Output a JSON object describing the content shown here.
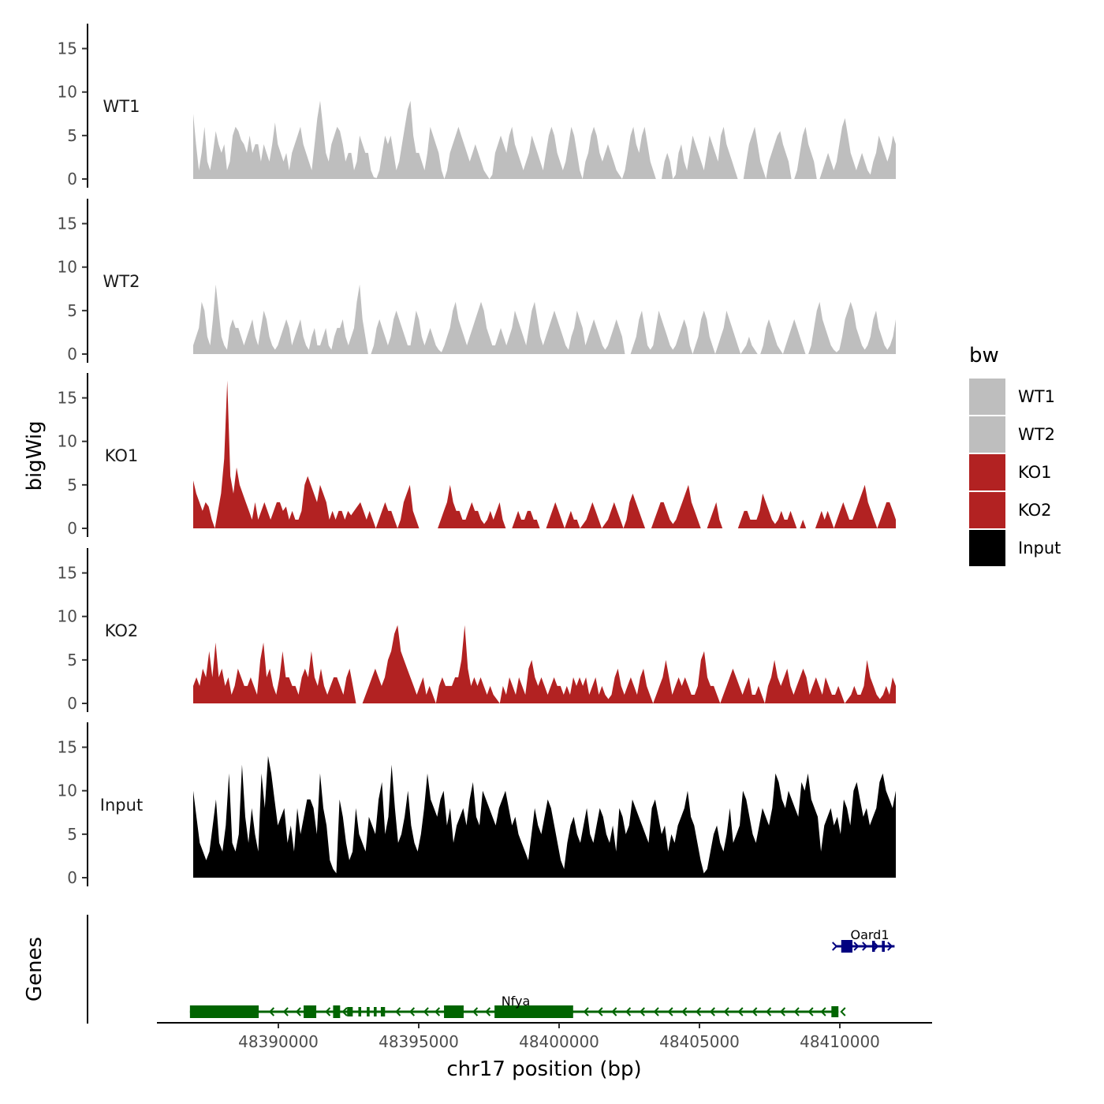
{
  "chart_data": {
    "type": "area",
    "ylabel": "bigWig",
    "xlabel": "chr17 position (bp)",
    "genes_axis_label": "Genes",
    "region": {
      "start": 48386800,
      "end": 48412000
    },
    "ylim": [
      0,
      17.5
    ],
    "y_ticks": [
      0,
      5,
      10,
      15
    ],
    "x_ticks": [
      48390000,
      48395000,
      48400000,
      48405000,
      48410000
    ],
    "x_tick_labels": [
      "48390000",
      "48395000",
      "48400000",
      "48405000",
      "48410000"
    ],
    "colors": {
      "WT1": "#bebebe",
      "WT2": "#bebebe",
      "KO1": "#b22222",
      "KO2": "#b22222",
      "Input": "#000000"
    },
    "legend": {
      "title": "bw",
      "position": "right",
      "entries": [
        "WT1",
        "WT2",
        "KO1",
        "KO2",
        "Input"
      ]
    },
    "tracks": [
      {
        "name": "WT1",
        "values": [
          7.5,
          4,
          1,
          3,
          6,
          2,
          1,
          3,
          5.5,
          4,
          3,
          4,
          1,
          2,
          5,
          6,
          5.5,
          4.5,
          4,
          3,
          5,
          3,
          4,
          4,
          2,
          4,
          3,
          2,
          4,
          6.5,
          4,
          3,
          2,
          3,
          1,
          3,
          4,
          5,
          6,
          4,
          3,
          2,
          1,
          4,
          7,
          9,
          6,
          3,
          2,
          4,
          5,
          6,
          5.5,
          4,
          2,
          3,
          3,
          1,
          2,
          5,
          4,
          3,
          3,
          1,
          0.2,
          0.1,
          1,
          3,
          5,
          4,
          5,
          3,
          1,
          2,
          4,
          6,
          8,
          9,
          5,
          3,
          3,
          2,
          1,
          3,
          6,
          5,
          4,
          3,
          1,
          0,
          1,
          3,
          4,
          5,
          6,
          5,
          4,
          3,
          2,
          3,
          4,
          3,
          2,
          1,
          0.5,
          0,
          0.5,
          3,
          4,
          5,
          4,
          3,
          5,
          6,
          4,
          3,
          2,
          1,
          2,
          3,
          5,
          4,
          3,
          2,
          1,
          3,
          5,
          6,
          5,
          3,
          2,
          1,
          2,
          4,
          6,
          5,
          3,
          1,
          0,
          2,
          3,
          5,
          6,
          5,
          3,
          2,
          3,
          4,
          3,
          2,
          1,
          0.5,
          0,
          1,
          3,
          5,
          6,
          4,
          3,
          5,
          6,
          4,
          2,
          1,
          0,
          0,
          0,
          2,
          3,
          2,
          0,
          0.5,
          3,
          4,
          2,
          1,
          3,
          5,
          4,
          3,
          2,
          1,
          3,
          5,
          4,
          3,
          2,
          5,
          6,
          4,
          3,
          2,
          1,
          0,
          0,
          0,
          2,
          4,
          5,
          6,
          4,
          2,
          1,
          0,
          2,
          3,
          4,
          5,
          5.5,
          4,
          3,
          2,
          0,
          0,
          1,
          3,
          5,
          6,
          4,
          3,
          2,
          0,
          0,
          1,
          2,
          3,
          2,
          1,
          2,
          4,
          6,
          7,
          5,
          3,
          2,
          1,
          2,
          3,
          2,
          1,
          0.5,
          2,
          3,
          5,
          4,
          3,
          2,
          3,
          5,
          4
        ]
      },
      {
        "name": "WT2",
        "values": [
          1,
          2,
          3,
          6,
          5,
          2,
          1,
          4,
          8,
          5,
          2,
          1,
          0.5,
          3,
          4,
          3,
          3,
          2,
          1,
          2,
          3,
          4,
          2,
          1,
          3,
          5,
          4,
          2,
          1,
          0.5,
          1,
          2,
          3,
          4,
          3,
          1,
          2,
          3,
          4,
          2,
          1,
          0.5,
          2,
          3,
          1,
          1,
          2,
          3,
          1,
          0.5,
          2,
          3,
          3,
          4,
          2,
          1,
          2,
          3,
          6,
          8,
          4,
          2,
          0,
          0,
          1,
          3,
          4,
          3,
          2,
          1,
          2,
          4,
          5,
          4,
          3,
          2,
          1,
          1,
          3,
          5,
          4,
          2,
          1,
          2,
          3,
          2,
          1,
          0.5,
          0.2,
          1,
          2,
          3,
          5,
          6,
          4,
          3,
          2,
          1,
          2,
          3,
          4,
          5,
          6,
          5,
          3,
          2,
          1,
          1,
          2,
          3,
          2,
          1,
          2,
          3,
          5,
          4,
          3,
          2,
          1,
          3,
          5,
          6,
          4,
          2,
          1,
          2,
          3,
          4,
          5,
          4,
          3,
          2,
          1,
          0.5,
          2,
          3,
          5,
          4,
          3,
          1,
          2,
          3,
          4,
          3,
          2,
          1,
          0.5,
          1,
          2,
          3,
          4,
          3,
          2,
          0,
          0,
          0,
          1,
          2,
          4,
          5,
          3,
          1,
          0.5,
          1,
          3,
          5,
          4,
          3,
          2,
          1,
          0.5,
          1,
          2,
          3,
          4,
          3,
          1,
          0,
          1,
          2,
          4,
          5,
          4,
          2,
          1,
          0,
          1,
          2,
          3,
          5,
          4,
          3,
          2,
          1,
          0,
          0.5,
          1,
          2,
          1,
          0.5,
          0,
          0,
          1,
          3,
          4,
          3,
          2,
          1,
          0.5,
          0,
          1,
          2,
          3,
          4,
          3,
          2,
          1,
          0,
          0,
          1,
          3,
          5,
          6,
          4,
          3,
          2,
          1,
          0.5,
          0.2,
          0.5,
          2,
          4,
          5,
          6,
          5,
          3,
          2,
          1,
          0.5,
          1,
          2,
          4,
          5,
          3,
          2,
          1,
          0.5,
          1,
          2,
          4
        ]
      },
      {
        "name": "KO1",
        "values": [
          5.5,
          4,
          3,
          2,
          3,
          2.5,
          1,
          0,
          2,
          4,
          8,
          17,
          6,
          4,
          7,
          5,
          4,
          3,
          2,
          1,
          3,
          1,
          2,
          3,
          2,
          1,
          2,
          3,
          3,
          2,
          2.5,
          1,
          2,
          1,
          1,
          2,
          5,
          6,
          5,
          4,
          3,
          5,
          4,
          3,
          1,
          2,
          1,
          2,
          2,
          1,
          2,
          1.5,
          2,
          2.5,
          3,
          2,
          1,
          2,
          1,
          0,
          1,
          2,
          3,
          2,
          2,
          1,
          0,
          1,
          3,
          4,
          5,
          2,
          1,
          0,
          0,
          0,
          0,
          0,
          0,
          0,
          1,
          2,
          3,
          5,
          3,
          2,
          2,
          1,
          1,
          2,
          3,
          2,
          2,
          1,
          0.5,
          1,
          2,
          1,
          2,
          3,
          1,
          0,
          0,
          0,
          1,
          2,
          1,
          1,
          2,
          2,
          1,
          1,
          0,
          0,
          0,
          1,
          2,
          3,
          2,
          1,
          0,
          1,
          2,
          1,
          1,
          0,
          0.5,
          1,
          2,
          3,
          2,
          1,
          0,
          0.5,
          1,
          2,
          3,
          2,
          1,
          0,
          1,
          3,
          4,
          3,
          2,
          1,
          0,
          0,
          0,
          1,
          2,
          3,
          3,
          2,
          1,
          0.5,
          1,
          2,
          3,
          4,
          5,
          3,
          2,
          1,
          0,
          0,
          0,
          1,
          2,
          3,
          1,
          0,
          0,
          0,
          0,
          0,
          0,
          1,
          2,
          2,
          1,
          1,
          1,
          2,
          4,
          3,
          2,
          1,
          0.5,
          1,
          2,
          1,
          1,
          2,
          1,
          0,
          0,
          1,
          0,
          0,
          0,
          0,
          1,
          2,
          1,
          2,
          1,
          0,
          1,
          2,
          3,
          2,
          1,
          1,
          2,
          3,
          4,
          5,
          3,
          2,
          1,
          0,
          1,
          2,
          3,
          3,
          2,
          1
        ]
      },
      {
        "name": "KO2",
        "values": [
          2,
          3,
          2,
          4,
          3,
          6,
          3,
          7,
          3,
          4,
          2,
          3,
          1,
          2,
          4,
          3,
          2,
          2,
          3,
          2,
          1,
          5,
          7,
          3,
          4,
          2,
          1,
          3,
          6,
          3,
          3,
          2,
          2,
          1,
          3,
          4,
          3,
          6,
          3,
          2,
          4,
          2,
          1,
          2,
          3,
          3,
          2,
          1,
          3,
          4,
          2,
          0,
          0,
          0,
          1,
          2,
          3,
          4,
          3,
          2,
          3,
          5,
          6,
          8,
          9,
          6,
          5,
          4,
          3,
          2,
          1,
          2,
          3,
          1,
          2,
          1,
          0,
          2,
          3,
          2,
          2,
          2,
          3,
          3,
          5,
          9,
          4,
          2,
          3,
          2,
          3,
          2,
          1,
          2,
          1,
          0.5,
          0,
          2,
          1,
          3,
          2,
          1,
          3,
          2,
          1,
          4,
          5,
          3,
          2,
          3,
          2,
          1,
          2,
          3,
          2,
          2,
          1,
          2,
          1,
          3,
          2,
          3,
          2,
          3,
          1,
          2,
          3,
          1,
          2,
          1,
          0.5,
          1,
          3,
          4,
          2,
          1,
          2,
          3,
          2,
          1,
          3,
          4,
          2,
          1,
          0,
          1,
          2,
          3,
          5,
          3,
          1,
          2,
          3,
          2,
          3,
          2,
          1,
          1,
          2,
          5,
          6,
          3,
          2,
          2,
          1,
          0,
          1,
          2,
          3,
          4,
          3,
          2,
          1,
          2,
          3,
          1,
          1,
          2,
          1,
          0,
          2,
          3,
          5,
          3,
          2,
          3,
          4,
          2,
          1,
          2,
          3,
          4,
          3,
          1,
          2,
          3,
          2,
          1,
          3,
          2,
          1,
          1,
          2,
          1,
          0,
          0.5,
          1,
          2,
          1,
          1,
          2,
          5,
          3,
          2,
          1,
          0.5,
          1,
          2,
          1,
          3,
          2
        ]
      },
      {
        "name": "Input",
        "values": [
          10,
          7,
          4,
          3,
          2,
          3,
          6,
          9,
          4,
          3,
          6,
          12,
          4,
          3,
          5,
          13,
          7,
          4,
          8,
          5,
          3,
          12,
          8,
          14,
          12,
          9,
          6,
          7,
          8,
          4,
          6,
          3,
          8,
          5,
          7,
          9,
          9,
          8,
          5,
          12,
          8,
          6,
          2,
          1,
          0.5,
          9,
          7,
          4,
          2,
          3,
          8,
          5,
          4,
          3,
          7,
          6,
          5,
          9,
          11,
          5,
          7,
          13,
          8,
          4,
          5,
          7,
          10,
          6,
          4,
          3,
          5,
          8,
          12,
          9,
          8,
          7,
          9,
          10,
          6,
          8,
          4,
          6,
          7,
          8,
          6,
          9,
          11,
          7,
          6,
          10,
          9,
          8,
          7,
          6,
          8,
          9,
          10,
          8,
          6,
          7,
          5,
          4,
          3,
          2,
          5,
          8,
          6,
          5,
          7,
          9,
          8,
          6,
          4,
          2,
          1,
          4,
          6,
          7,
          5,
          4,
          6,
          8,
          5,
          4,
          6,
          8,
          7,
          5,
          4,
          6,
          3,
          8,
          7,
          5,
          6,
          9,
          8,
          7,
          6,
          5,
          4,
          8,
          9,
          7,
          5,
          6,
          3,
          5,
          4,
          6,
          7,
          8,
          10,
          7,
          6,
          4,
          2,
          0.5,
          1,
          3,
          5,
          6,
          4,
          3,
          5,
          8,
          4,
          5,
          6,
          10,
          9,
          7,
          5,
          4,
          6,
          8,
          7,
          6,
          8,
          12,
          11,
          9,
          8,
          10,
          9,
          8,
          7,
          11,
          10,
          12,
          9,
          8,
          7,
          3,
          6,
          7,
          8,
          6,
          7,
          5,
          9,
          8,
          6,
          10,
          11,
          9,
          7,
          8,
          6,
          7,
          8,
          11,
          12,
          10,
          9,
          8,
          10
        ]
      }
    ],
    "genes": [
      {
        "name": "Nfya",
        "strand": "-",
        "color": "#006400"
      },
      {
        "name": "Oard1",
        "strand": "+",
        "color": "#000080"
      }
    ]
  }
}
